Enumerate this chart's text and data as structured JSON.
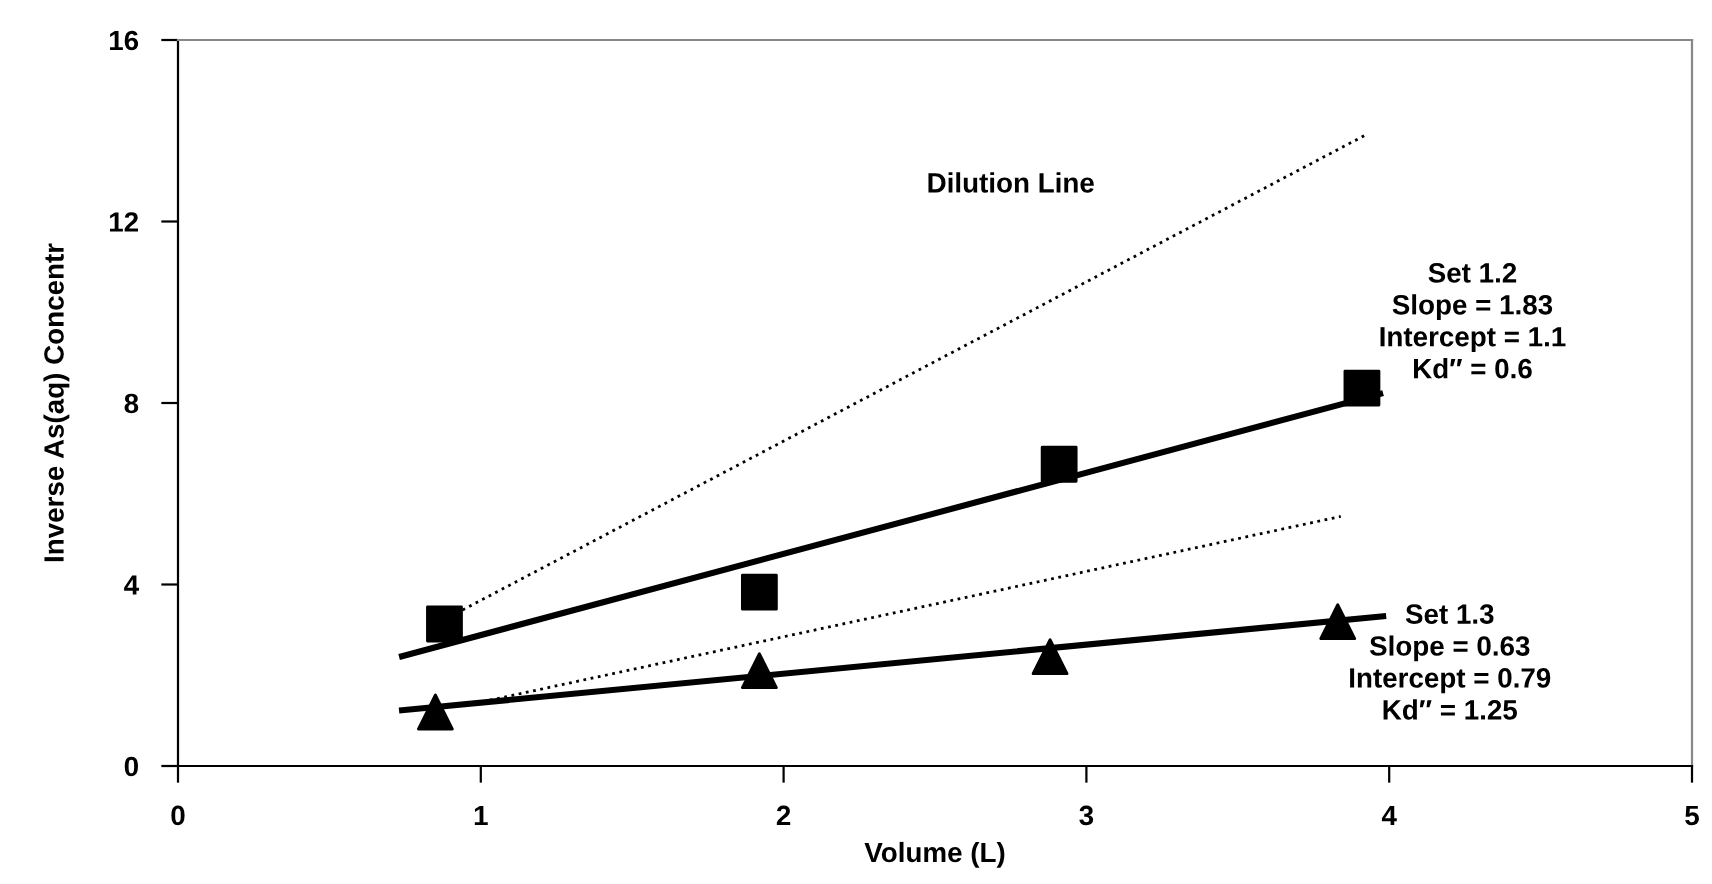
{
  "chart_data": {
    "type": "scatter",
    "xlabel": "Volume (L)",
    "ylabel": "Inverse As(aq) Concentr",
    "xlim": [
      0,
      5
    ],
    "xticks": [
      0,
      1,
      2,
      3,
      4,
      5
    ],
    "ylim": [
      0,
      16
    ],
    "yticks": [
      0,
      4,
      8,
      12,
      16
    ],
    "grid": false,
    "series": [
      {
        "marker": "square",
        "color": "#000000",
        "x": [
          0.88,
          1.92,
          2.91,
          3.91
        ],
        "values": [
          3.13,
          3.83,
          6.65,
          8.33
        ]
      },
      {
        "marker": "triangle",
        "color": "#000000",
        "x": [
          0.85,
          1.92,
          2.88,
          3.83
        ],
        "values": [
          1.19,
          2.1,
          2.41,
          3.18
        ]
      },
      {
        "type": "line",
        "line_style": "solid",
        "color": "#000000",
        "x": [
          0.74,
          3.97
        ],
        "values": [
          2.42,
          8.2
        ]
      },
      {
        "type": "line",
        "line_style": "solid",
        "color": "#000000",
        "x": [
          0.74,
          3.98
        ],
        "values": [
          1.23,
          3.3
        ]
      },
      {
        "type": "line",
        "line_style": "dotted",
        "color": "#000000",
        "x": [
          0.94,
          3.92
        ],
        "values": [
          3.44,
          13.9
        ]
      },
      {
        "type": "line",
        "line_style": "dotted",
        "color": "#000000",
        "x": [
          1.03,
          3.84
        ],
        "values": [
          1.45,
          5.5
        ]
      }
    ],
    "annotations": [
      "Dilution Line",
      "Set 1.2\nSlope = 1.83\nIntercept = 1.1\nKd″ = 0.6",
      "Set 1.3\nSlope = 0.63\nIntercept = 0.79\nKd″ = 1.25"
    ]
  }
}
